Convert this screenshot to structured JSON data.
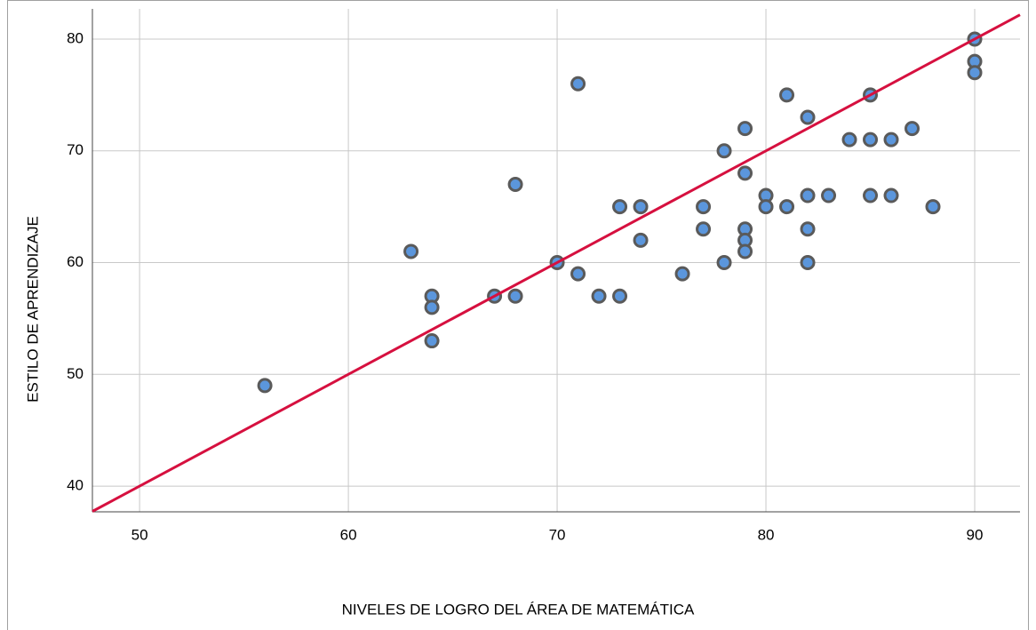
{
  "chart_data": {
    "type": "scatter",
    "x_label": "NIVELES DE LOGRO DEL ÁREA DE MATEMÁTICA",
    "y_label": "ESTILO DE APRENDIZAJE",
    "x": [
      56,
      63,
      64,
      64,
      64,
      67,
      68,
      68,
      70,
      71,
      71,
      72,
      73,
      73,
      74,
      74,
      76,
      77,
      77,
      78,
      78,
      79,
      79,
      79,
      79,
      79,
      80,
      80,
      81,
      81,
      82,
      82,
      82,
      82,
      83,
      84,
      85,
      85,
      85,
      86,
      86,
      87,
      88,
      90,
      90,
      90
    ],
    "y": [
      49,
      61,
      57,
      56,
      53,
      57,
      57,
      67,
      60,
      76,
      59,
      57,
      65,
      57,
      65,
      62,
      59,
      65,
      63,
      70,
      60,
      72,
      68,
      63,
      62,
      61,
      66,
      65,
      75,
      65,
      73,
      66,
      63,
      60,
      66,
      71,
      75,
      71,
      66,
      71,
      66,
      72,
      65,
      80,
      78,
      77
    ],
    "color": "#5b96dc",
    "edge_color": "#5a5a5a",
    "fit": {
      "slope": 1,
      "intercept": -10,
      "color": "#d6103f"
    },
    "xlim": [
      47.74,
      92.17
    ],
    "ylim": [
      37.7,
      82.7
    ],
    "xticks": [
      50,
      60,
      70,
      80,
      90
    ],
    "yticks": [
      40,
      50,
      60,
      70,
      80
    ],
    "grid": true
  }
}
